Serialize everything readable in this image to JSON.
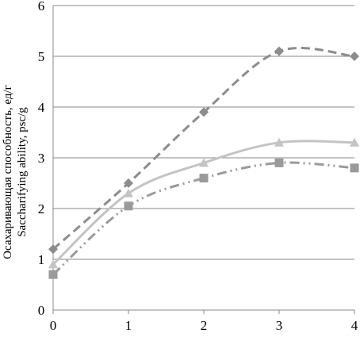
{
  "chart_data": {
    "type": "line",
    "x": [
      0,
      1,
      2,
      3,
      4
    ],
    "xlim": [
      0,
      4
    ],
    "ylim": [
      0,
      6
    ],
    "y_ticks": [
      "0",
      "1",
      "2",
      "3",
      "4",
      "5",
      "6"
    ],
    "x_ticks": [
      "0",
      "1",
      "2",
      "3",
      "4"
    ],
    "ylabel_line1": "Осахаривающая  способность, ед/г",
    "ylabel_line2": "Saccharifying ability, psc/g",
    "grid": "horizontal",
    "legend": "none",
    "series": [
      {
        "values": [
          1.2,
          2.5,
          3.9,
          5.1,
          5.0
        ],
        "marker": "diamond",
        "dash": "dashed",
        "color": "#8c8c8c"
      },
      {
        "values": [
          0.9,
          2.3,
          2.9,
          3.3,
          3.3
        ],
        "marker": "triangle",
        "dash": "solid",
        "color": "#c4c4c4"
      },
      {
        "values": [
          0.7,
          2.05,
          2.6,
          2.9,
          2.8
        ],
        "marker": "square",
        "dash": "dash-dot-dot",
        "color": "#9a9a9a"
      }
    ]
  }
}
